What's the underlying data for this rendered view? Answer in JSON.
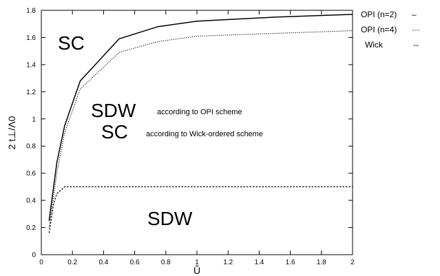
{
  "chart_data": {
    "type": "line",
    "xlabel": "Ũ",
    "ylabel": "2 t⊥/Λ0",
    "xlim": [
      0,
      2
    ],
    "ylim": [
      0,
      1.8
    ],
    "xticks": [
      "0",
      "0.2",
      "0.4",
      "0.6",
      "0.8",
      "1",
      "1.2",
      "1.4",
      "1.6",
      "1.8",
      "2"
    ],
    "yticks": [
      "0",
      "0.2",
      "0.4",
      "0.6",
      "0.8",
      "1",
      "1.2",
      "1.4",
      "1.6",
      "1.8"
    ],
    "grid": false,
    "legend_position": "outside-right",
    "series": [
      {
        "name": "OPI (n=2)",
        "style": "solid",
        "legend_glyph": "–",
        "x": [
          0.05,
          0.1,
          0.15,
          0.25,
          0.5,
          0.75,
          1.0,
          1.5,
          2.0
        ],
        "y": [
          0.25,
          0.68,
          0.95,
          1.28,
          1.59,
          1.68,
          1.72,
          1.75,
          1.77
        ]
      },
      {
        "name": "OPI (n=4)",
        "style": "dotted",
        "legend_glyph": "···",
        "x": [
          0.05,
          0.1,
          0.15,
          0.25,
          0.5,
          0.75,
          1.0,
          1.5,
          2.0
        ],
        "y": [
          0.2,
          0.6,
          0.9,
          1.22,
          1.49,
          1.57,
          1.61,
          1.63,
          1.65
        ]
      },
      {
        "name": "Wick",
        "style": "dashed",
        "legend_glyph": "--",
        "x": [
          0.05,
          0.08,
          0.1,
          0.15,
          0.2,
          0.5,
          1.0,
          1.5,
          2.0
        ],
        "y": [
          0.16,
          0.38,
          0.45,
          0.5,
          0.5,
          0.5,
          0.5,
          0.5,
          0.5
        ]
      }
    ],
    "annotations": {
      "sc_top": "SC",
      "sdw_middle": "SDW",
      "sdw_middle_note": "according to OPI scheme",
      "sc_middle": "SC",
      "sc_middle_note": "according to Wick-ordered scheme",
      "sdw_bottom": "SDW"
    }
  }
}
